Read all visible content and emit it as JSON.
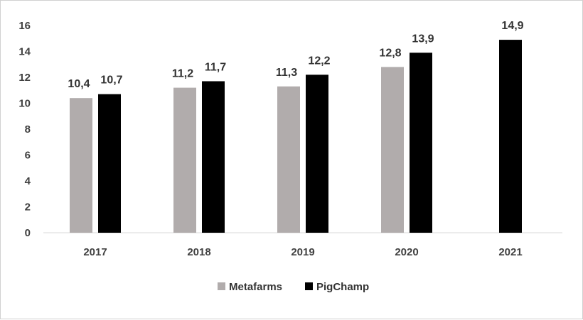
{
  "chart_data": {
    "type": "bar",
    "categories": [
      "2017",
      "2018",
      "2019",
      "2020",
      "2021"
    ],
    "series": [
      {
        "name": "Metafarms",
        "values": [
          10.4,
          11.2,
          11.3,
          12.8,
          null
        ],
        "labels": [
          "10,4",
          "11,2",
          "11,3",
          "12,8",
          ""
        ],
        "color": "#b1acac"
      },
      {
        "name": "PigChamp",
        "values": [
          10.7,
          11.7,
          12.2,
          13.9,
          14.9
        ],
        "labels": [
          "10,7",
          "11,7",
          "12,2",
          "13,9",
          "14,9"
        ],
        "color": "#000000"
      }
    ],
    "yticks": [
      "0",
      "2",
      "4",
      "6",
      "8",
      "10",
      "12",
      "14",
      "16"
    ],
    "ylim": [
      0,
      16
    ],
    "grid": false,
    "legend": "bottom-center",
    "axis_color": "#d9d9d9"
  }
}
